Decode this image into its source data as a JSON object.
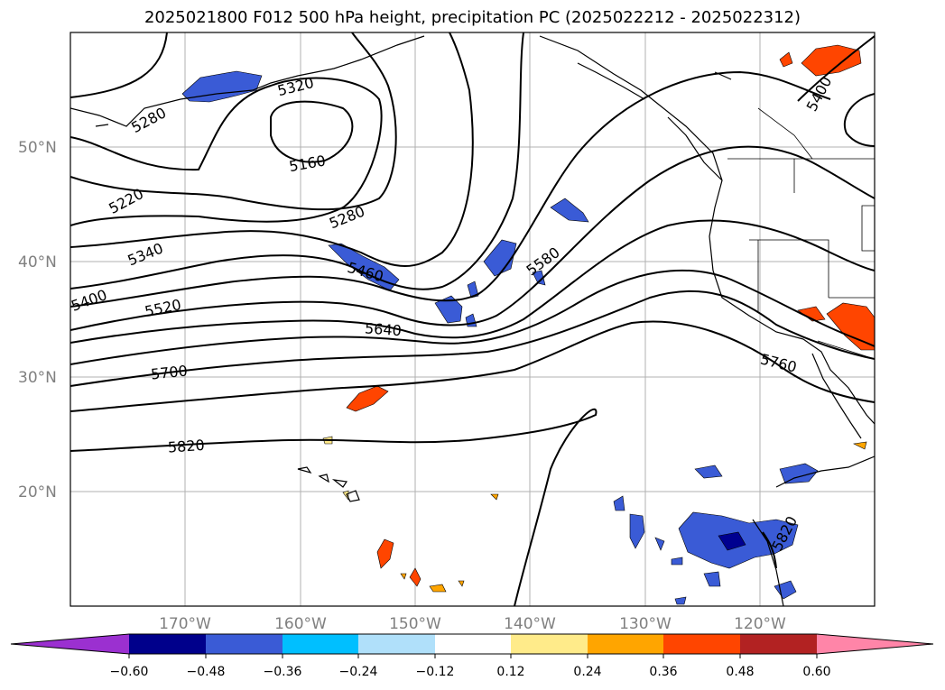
{
  "title": "2025021800 F012 500 hPa height, precipitation PC (2025022212 - 2025022312)",
  "map": {
    "lat_ticks": [
      "50°N",
      "40°N",
      "30°N",
      "20°N"
    ],
    "lon_ticks": [
      "170°W",
      "160°W",
      "150°W",
      "140°W",
      "130°W",
      "120°W"
    ],
    "grid": true
  },
  "contours": {
    "variable": "500 hPa height",
    "labels": [
      "5160",
      "5220",
      "5280",
      "5280",
      "5320",
      "5340",
      "5400",
      "5400",
      "5460",
      "5520",
      "5580",
      "5640",
      "5700",
      "5760",
      "5820",
      "5820"
    ]
  },
  "precip_patches": {
    "negative_colors": [
      "#00c0ff",
      "#3a5bd6",
      "#000090"
    ],
    "positive_colors": [
      "#ffe98a",
      "#ffa500",
      "#ff4500"
    ]
  },
  "colorbar": {
    "ticks": [
      "−0.60",
      "−0.48",
      "−0.36",
      "−0.24",
      "−0.12",
      "0.12",
      "0.24",
      "0.36",
      "0.48",
      "0.60"
    ],
    "colors": [
      "#9b30d0",
      "#00008b",
      "#3a5bd6",
      "#00bfff",
      "#b0e0fa",
      "#ffffff",
      "#ffeb8a",
      "#ffa500",
      "#ff4500",
      "#b22222",
      "#ff85a8"
    ]
  }
}
